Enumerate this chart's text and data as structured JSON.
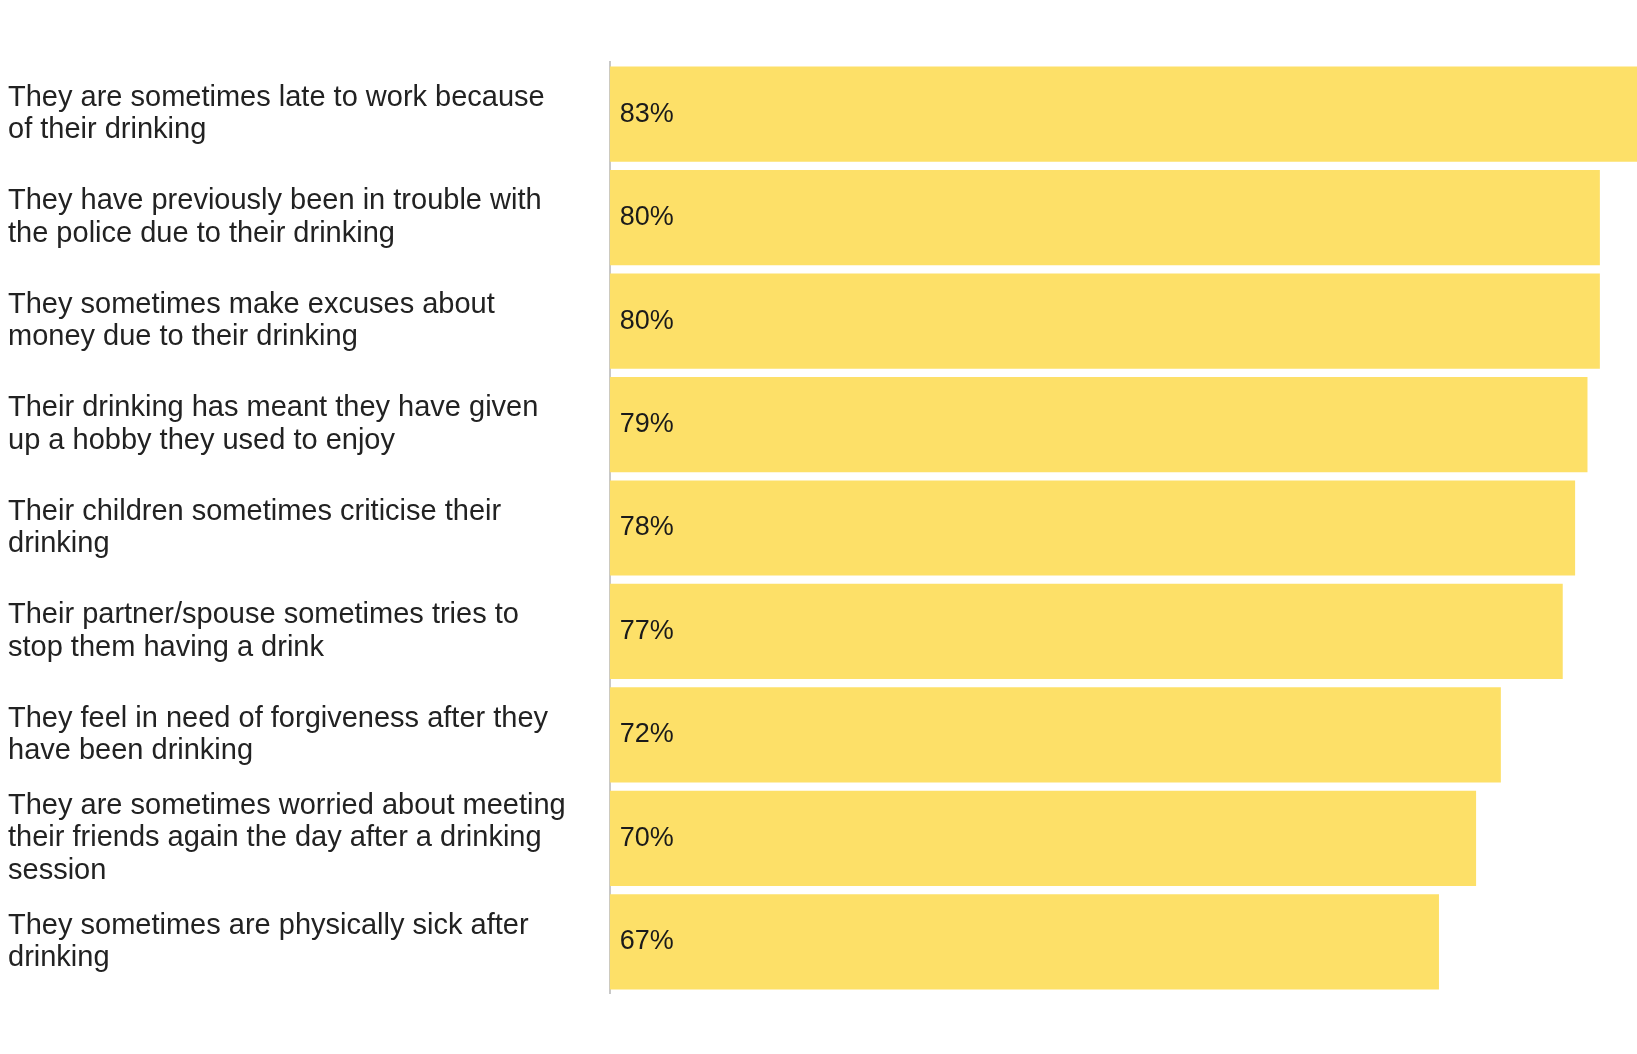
{
  "chart_data": {
    "type": "bar",
    "orientation": "horizontal",
    "categories": [
      "They are sometimes late to work because of their drinking",
      "They have previously been in trouble with the police due to their drinking",
      "They sometimes make excuses about money due to their drinking",
      "Their drinking has meant they have given up a hobby they used to enjoy",
      "Their children sometimes criticise their drinking",
      "Their partner/spouse sometimes tries to stop them having a drink",
      "They feel in need of forgiveness after they have been drinking",
      "They are sometimes worried about meeting their friends again the day after a drinking session",
      "They sometimes are physically sick after drinking"
    ],
    "values": [
      83,
      80,
      80,
      79,
      78,
      77,
      72,
      70,
      67
    ],
    "value_labels": [
      "83%",
      "80%",
      "80%",
      "79%",
      "78%",
      "77%",
      "72%",
      "70%",
      "67%"
    ],
    "color": "#fde068",
    "xlim": [
      0,
      83
    ],
    "tick_labels": "y",
    "grid": false,
    "legend": false
  }
}
